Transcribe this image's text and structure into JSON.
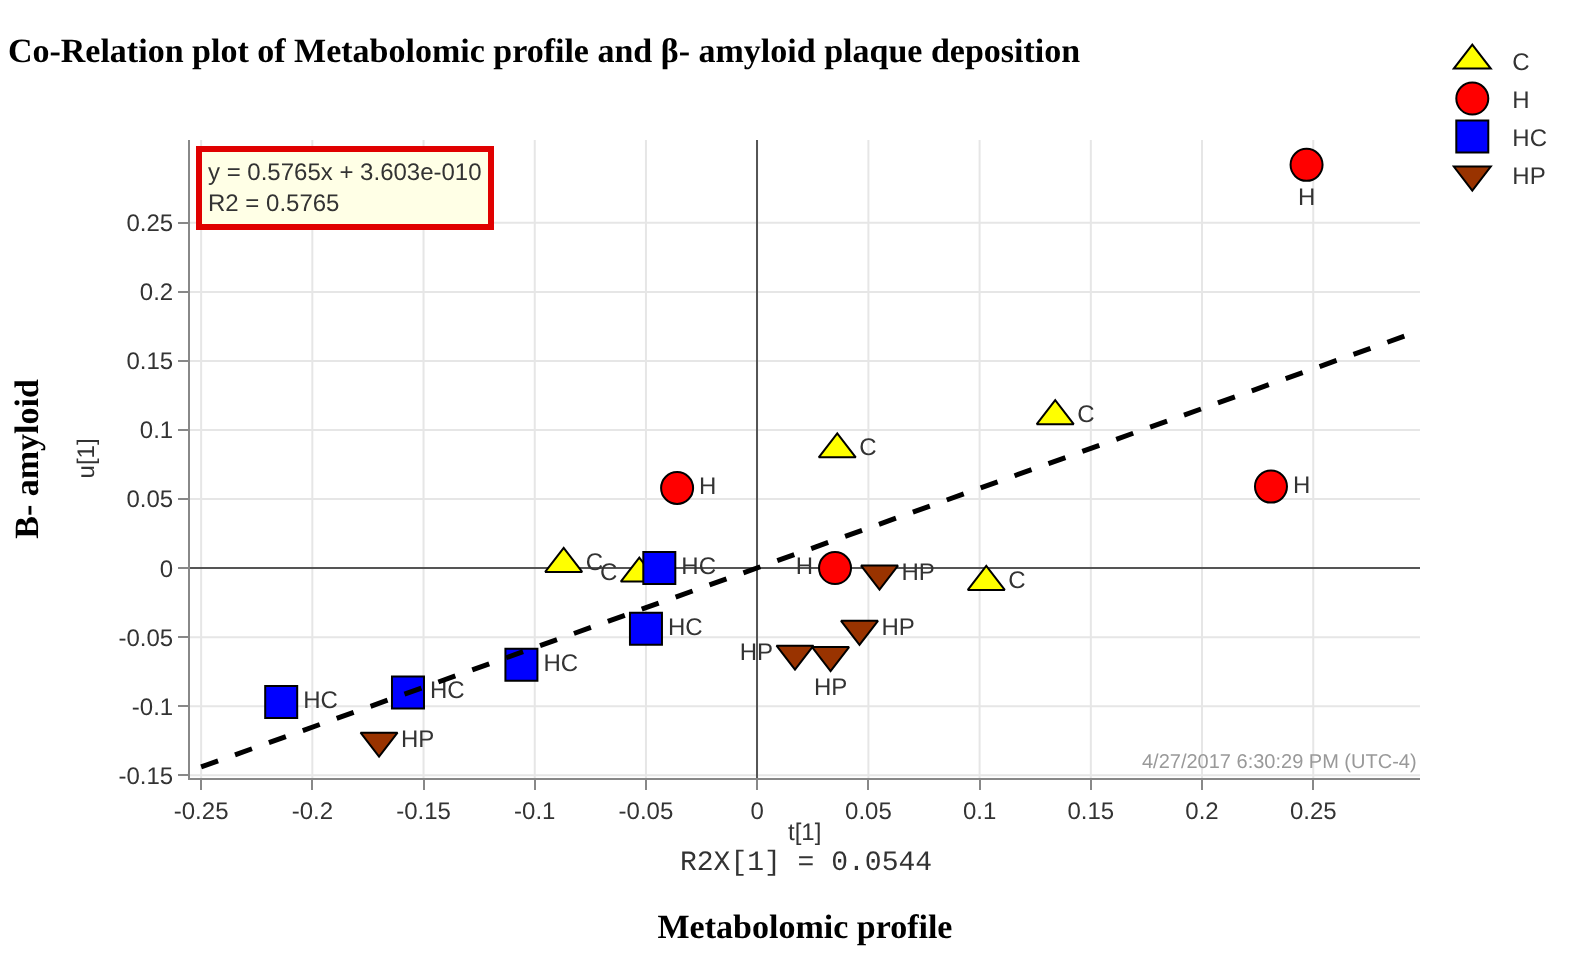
{
  "chart_data": {
    "type": "scatter",
    "title": "Co-Relation plot of Metabolomic profile and β- amyloid plaque deposition",
    "xlabel": "Metabolomic profile",
    "ylabel": "B- amyloid",
    "annotations": [
      "t[1]",
      "R2X[1] = 0.0544",
      "u[1]",
      "y = 0.5765x + 3.603e-010\nR2 = 0.5765",
      "4/27/2017 6:30:29 PM (UTC-4)"
    ],
    "xlim": [
      -0.255,
      0.298
    ],
    "ylim": [
      -0.152,
      0.31
    ],
    "xticks": [
      -0.25,
      -0.2,
      -0.15,
      -0.1,
      -0.05,
      0,
      0.05,
      0.1,
      0.15,
      0.2,
      0.25
    ],
    "yticks": [
      -0.15,
      -0.1,
      -0.05,
      0,
      0.05,
      0.1,
      0.15,
      0.2,
      0.25
    ],
    "grid": true,
    "legend": "top right",
    "series": [
      {
        "name": "C",
        "color": "#ffff00",
        "marker": "triangle",
        "x": [
          -0.087,
          -0.053,
          0.036,
          0.134,
          0.103
        ],
        "values": [
          0.003,
          -0.004,
          0.086,
          0.11,
          -0.01
        ]
      },
      {
        "name": "H",
        "color": "#ff0000",
        "marker": "circle",
        "x": [
          0.247,
          -0.036,
          0.035,
          0.231
        ],
        "values": [
          0.292,
          0.058,
          0.0,
          0.059
        ]
      },
      {
        "name": "HC",
        "color": "#0000ff",
        "marker": "square",
        "x": [
          -0.214,
          -0.157,
          -0.106,
          -0.05,
          -0.044
        ],
        "values": [
          -0.097,
          -0.09,
          -0.07,
          -0.044,
          0.0
        ]
      },
      {
        "name": "HP",
        "color": "#993300",
        "marker": "triangle-down",
        "x": [
          -0.17,
          0.055,
          0.046,
          0.017,
          0.033
        ],
        "values": [
          -0.125,
          -0.004,
          -0.044,
          -0.062,
          -0.063
        ]
      },
      {
        "type": "line",
        "color": "#000000",
        "marker": "none",
        "line_style": "dashed",
        "x": [
          -0.25,
          0.298
        ],
        "values": [
          -0.144,
          0.172
        ]
      }
    ]
  }
}
